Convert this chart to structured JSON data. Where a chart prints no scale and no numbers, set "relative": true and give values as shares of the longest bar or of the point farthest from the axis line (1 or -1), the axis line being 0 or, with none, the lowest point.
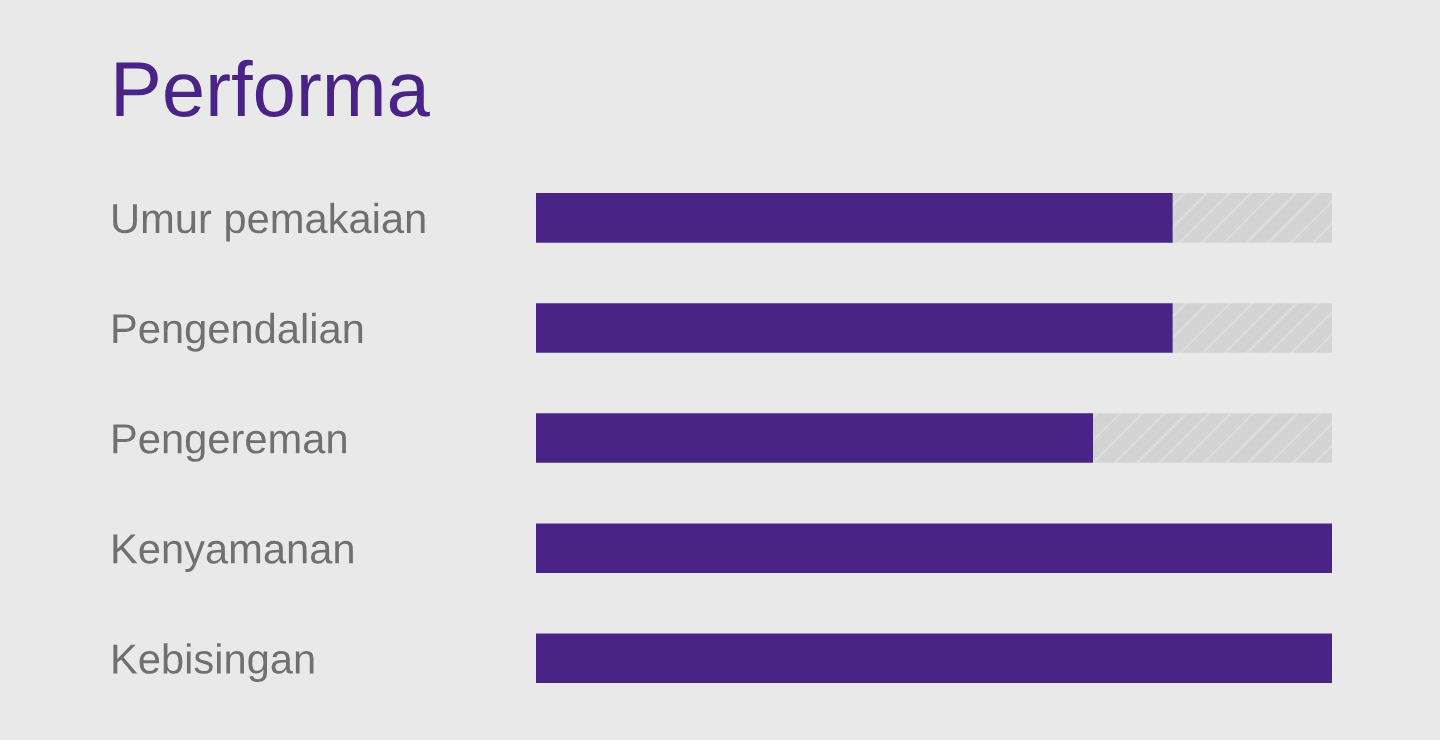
{
  "chart_data": {
    "type": "bar",
    "orientation": "horizontal",
    "stacked": true,
    "relative": true,
    "title": "Performa",
    "categories": [
      "Umur pemakaian",
      "Pengendalian",
      "Pengereman",
      "Kenyamanan",
      "Kebisingan"
    ],
    "series": [
      {
        "color": "#4a2386",
        "values": [
          0.8,
          0.8,
          0.7,
          1,
          1
        ]
      },
      {
        "color": "#d3d3d3",
        "values": [
          0.2,
          0.2,
          0.3,
          0,
          0
        ]
      }
    ],
    "grid": false,
    "legend": false
  }
}
